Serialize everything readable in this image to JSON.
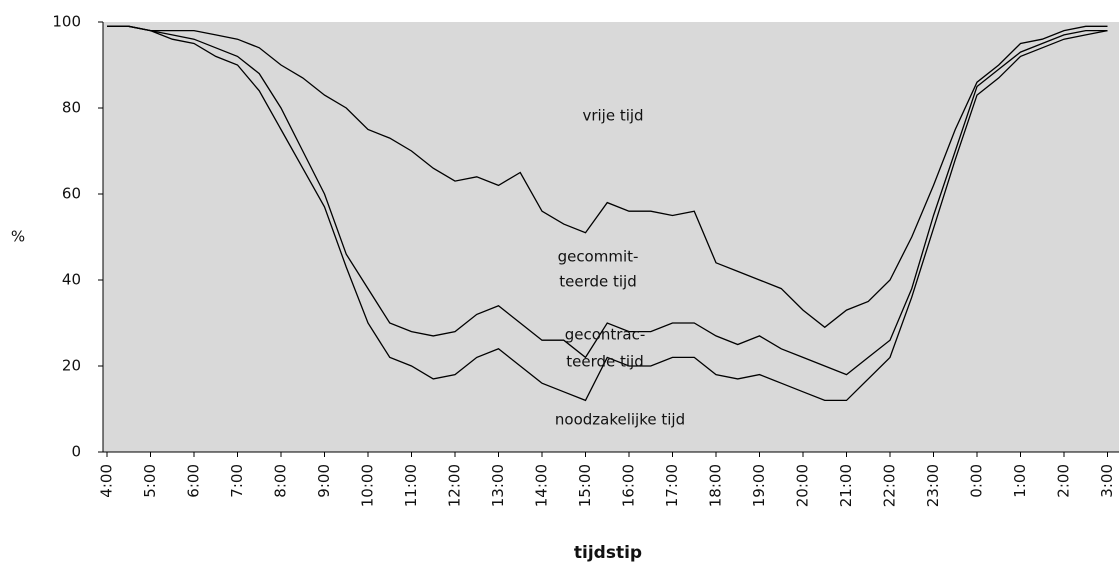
{
  "chart_data": {
    "type": "line",
    "y_label": "%",
    "x_label": "tijdstip",
    "categories": [
      "4:00",
      null,
      "5:00",
      null,
      "6:00",
      null,
      "7:00",
      null,
      "8:00",
      null,
      "9:00",
      null,
      "10:00",
      null,
      "11:00",
      null,
      "12:00",
      null,
      "13:00",
      null,
      "14:00",
      null,
      "15:00",
      null,
      "16:00",
      null,
      "17:00",
      null,
      "18:00",
      null,
      "19:00",
      null,
      "20:00",
      null,
      "21:00",
      null,
      "22:00",
      null,
      "23:00",
      null,
      "0:00",
      null,
      "1:00",
      null,
      "2:00",
      null,
      "3:00"
    ],
    "series": [
      {
        "color": "#000000",
        "values": [
          99,
          99,
          98,
          98,
          98,
          97,
          96,
          94,
          90,
          87,
          83,
          80,
          75,
          73,
          70,
          66,
          63,
          64,
          62,
          65,
          56,
          53,
          51,
          58,
          56,
          56,
          55,
          56,
          44,
          42,
          40,
          38,
          33,
          29,
          33,
          35,
          40,
          50,
          62,
          75,
          86,
          90,
          95,
          96,
          98,
          99,
          99
        ]
      },
      {
        "color": "#000000",
        "values": [
          99,
          99,
          98,
          97,
          96,
          94,
          92,
          88,
          80,
          70,
          60,
          46,
          38,
          30,
          28,
          27,
          28,
          32,
          34,
          30,
          26,
          26,
          22,
          30,
          28,
          28,
          30,
          30,
          27,
          25,
          27,
          24,
          22,
          20,
          18,
          22,
          26,
          38,
          55,
          70,
          85,
          89,
          93,
          95,
          97,
          98,
          98
        ]
      },
      {
        "color": "#000000",
        "values": [
          99,
          99,
          98,
          96,
          95,
          92,
          90,
          84,
          75,
          66,
          57,
          43,
          30,
          22,
          20,
          17,
          18,
          22,
          24,
          20,
          16,
          14,
          12,
          22,
          20,
          20,
          22,
          22,
          18,
          17,
          18,
          16,
          14,
          12,
          12,
          17,
          22,
          36,
          52,
          68,
          83,
          87,
          92,
          94,
          96,
          97,
          98
        ]
      }
    ],
    "annotations": [
      "vrije tijd",
      "gecommit-",
      "teerde tijd",
      "gecontrac-",
      "teerde tijd",
      "noodzakelijke tijd"
    ],
    "ylim": [
      0,
      100
    ],
    "yticks": [
      0,
      20,
      40,
      60,
      80,
      100
    ],
    "grid": false,
    "background": "#d9d9d9"
  }
}
